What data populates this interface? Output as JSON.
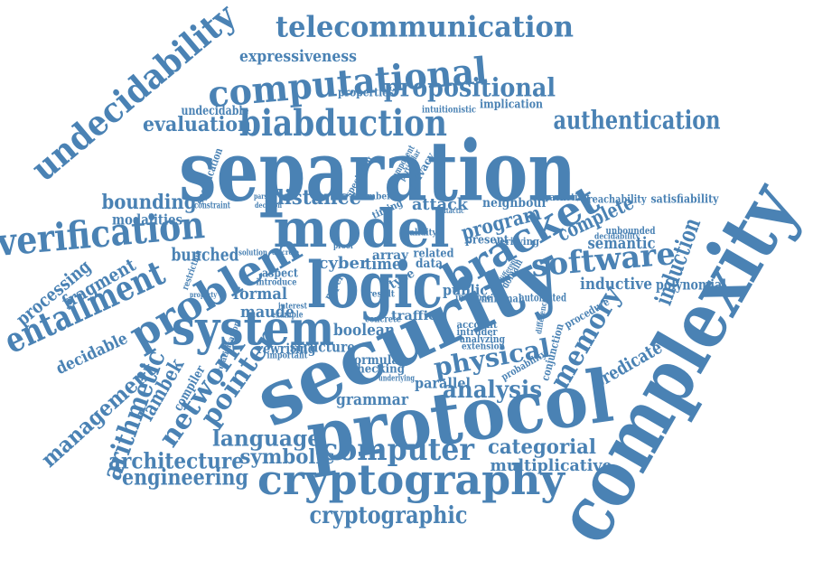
{
  "color": "#4a82b4",
  "words": [
    {
      "id": "separation",
      "text": "separation"
    },
    {
      "id": "complexity",
      "text": "complexity"
    },
    {
      "id": "security",
      "text": "security"
    },
    {
      "id": "protocol",
      "text": "protocol"
    },
    {
      "id": "logic",
      "text": "logic"
    },
    {
      "id": "model",
      "text": "model"
    },
    {
      "id": "system",
      "text": "system"
    },
    {
      "id": "biabduction",
      "text": "biabduction"
    },
    {
      "id": "computational",
      "text": "computational"
    },
    {
      "id": "telecommunication",
      "text": "telecommunication"
    },
    {
      "id": "undecidability",
      "text": "undecidability"
    },
    {
      "id": "verification",
      "text": "verification"
    },
    {
      "id": "problem",
      "text": "problem"
    },
    {
      "id": "cryptography",
      "text": "cryptography"
    },
    {
      "id": "cryptographic",
      "text": "cryptographic"
    },
    {
      "id": "bracket",
      "text": "bracket"
    },
    {
      "id": "software",
      "text": "software"
    },
    {
      "id": "propositional",
      "text": "propositional"
    },
    {
      "id": "authentication",
      "text": "authentication"
    },
    {
      "id": "entailment",
      "text": "entailment"
    },
    {
      "id": "computer",
      "text": "computer"
    },
    {
      "id": "network",
      "text": "network"
    },
    {
      "id": "pointer",
      "text": "pointer"
    },
    {
      "id": "arithmetic",
      "text": "arithmetic"
    },
    {
      "id": "memory",
      "text": "memory"
    },
    {
      "id": "induction",
      "text": "induction"
    },
    {
      "id": "physical",
      "text": "physical"
    },
    {
      "id": "analysis",
      "text": "analysis"
    },
    {
      "id": "management",
      "text": "management"
    },
    {
      "id": "architecture",
      "text": "architecture"
    },
    {
      "id": "engineering",
      "text": "engineering"
    },
    {
      "id": "language",
      "text": "language"
    },
    {
      "id": "symbolic",
      "text": "symbolic"
    },
    {
      "id": "categorial",
      "text": "categorial"
    },
    {
      "id": "multiplicative",
      "text": "multiplicative"
    },
    {
      "id": "evaluation",
      "text": "evaluation"
    },
    {
      "id": "expressiveness",
      "text": "expressiveness"
    },
    {
      "id": "bounding",
      "text": "bounding"
    },
    {
      "id": "distance",
      "text": "distance"
    },
    {
      "id": "program",
      "text": "program"
    },
    {
      "id": "complete",
      "text": "complete"
    },
    {
      "id": "semantic",
      "text": "semantic"
    },
    {
      "id": "inductive",
      "text": "inductive"
    },
    {
      "id": "polynomial",
      "text": "polynomial"
    },
    {
      "id": "predicate",
      "text": "predicate"
    },
    {
      "id": "lambek",
      "text": "lambek"
    },
    {
      "id": "processing",
      "text": "processing"
    },
    {
      "id": "fragment",
      "text": "fragment"
    },
    {
      "id": "decidable",
      "text": "decidable"
    },
    {
      "id": "modalities",
      "text": "modalities"
    },
    {
      "id": "bunched",
      "text": "bunched"
    },
    {
      "id": "formal",
      "text": "formal"
    },
    {
      "id": "maude",
      "text": "maude"
    },
    {
      "id": "grammar",
      "text": "grammar"
    },
    {
      "id": "structure",
      "text": "structure"
    },
    {
      "id": "boolean",
      "text": "boolean"
    },
    {
      "id": "rewriting",
      "text": "rewriting"
    },
    {
      "id": "compiler",
      "text": "compiler"
    },
    {
      "id": "attack",
      "text": "attack"
    },
    {
      "id": "time",
      "text": "time"
    },
    {
      "id": "cyber",
      "text": "cyber"
    },
    {
      "id": "array",
      "text": "array"
    },
    {
      "id": "public",
      "text": "public"
    },
    {
      "id": "parallel",
      "text": "parallel"
    },
    {
      "id": "traffic",
      "text": "traffic"
    },
    {
      "id": "formula",
      "text": "formula"
    },
    {
      "id": "checking",
      "text": "checking"
    },
    {
      "id": "properties",
      "text": "properties"
    },
    {
      "id": "undecidable",
      "text": "undecidable"
    },
    {
      "id": "implication",
      "text": "implication"
    },
    {
      "id": "intuitionistic",
      "text": "intuitionistic"
    },
    {
      "id": "neighbour",
      "text": "neighbour"
    },
    {
      "id": "reachability",
      "text": "reachability"
    },
    {
      "id": "satisfiability",
      "text": "satisfiability"
    },
    {
      "id": "bracketing",
      "text": "bracketing"
    },
    {
      "id": "unbounded",
      "text": "unbounded"
    },
    {
      "id": "decidability",
      "text": "decidability"
    },
    {
      "id": "automated",
      "text": "automated"
    },
    {
      "id": "minimal",
      "text": "minimal"
    },
    {
      "id": "procedure",
      "text": "procedure"
    },
    {
      "id": "conjunction",
      "text": "conjunction"
    },
    {
      "id": "probability",
      "text": "probability"
    },
    {
      "id": "specification",
      "text": "specification"
    },
    {
      "id": "timing",
      "text": "timing"
    },
    {
      "id": "privacy",
      "text": "privacy"
    },
    {
      "id": "specifying",
      "text": "specifying"
    },
    {
      "id": "constraint",
      "text": "constraint"
    },
    {
      "id": "decision",
      "text": "decision"
    },
    {
      "id": "parsing",
      "text": "parsing"
    },
    {
      "id": "number",
      "text": "number"
    },
    {
      "id": "data",
      "text": "data"
    },
    {
      "id": "related",
      "text": "related"
    },
    {
      "id": "present",
      "text": "present"
    },
    {
      "id": "verifying",
      "text": "verifying"
    },
    {
      "id": "account",
      "text": "account"
    },
    {
      "id": "intruder",
      "text": "intruder"
    },
    {
      "id": "analyzing",
      "text": "analyzing"
    },
    {
      "id": "extension",
      "text": "extension"
    },
    {
      "id": "instance",
      "text": "instance"
    },
    {
      "id": "aspect",
      "text": "aspect"
    },
    {
      "id": "introduce",
      "text": "introduce"
    },
    {
      "id": "restriction",
      "text": "restriction"
    },
    {
      "id": "relativisation",
      "text": "relativisation"
    },
    {
      "id": "important",
      "text": "important"
    },
    {
      "id": "concrete",
      "text": "concrete"
    },
    {
      "id": "underlying",
      "text": "underlying"
    },
    {
      "id": "example",
      "text": "example"
    },
    {
      "id": "interest",
      "text": "interest"
    },
    {
      "id": "property",
      "text": "property"
    },
    {
      "id": "type",
      "text": "type"
    },
    {
      "id": "validity",
      "text": "validity"
    },
    {
      "id": "domain",
      "text": "domain"
    },
    {
      "id": "result",
      "text": "result"
    },
    {
      "id": "paper",
      "text": "paper"
    },
    {
      "id": "different",
      "text": "different"
    },
    {
      "id": "difference",
      "text": "difference"
    },
    {
      "id": "component",
      "text": "component"
    },
    {
      "id": "particular",
      "text": "particular"
    },
    {
      "id": "solution",
      "text": "solution"
    },
    {
      "id": "discrete",
      "text": "discrete"
    },
    {
      "id": "syntactic",
      "text": "syntactic"
    },
    {
      "id": "proof",
      "text": "proof"
    }
  ]
}
